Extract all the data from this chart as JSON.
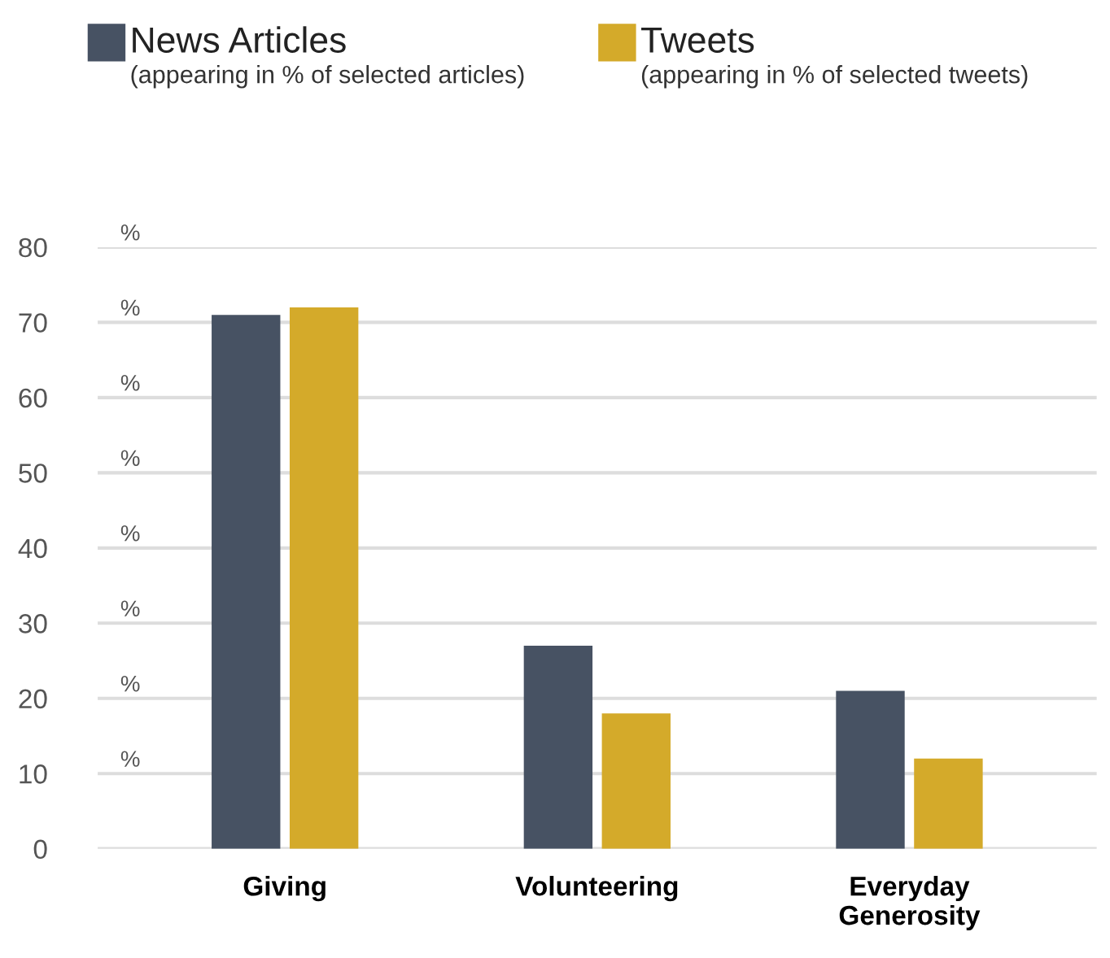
{
  "chart_data": {
    "type": "bar",
    "categories": [
      "Giving",
      "Volunteering",
      "Everyday\nGenerosity"
    ],
    "series": [
      {
        "name": "News Articles\n(appearing in % of selected articles)",
        "color": "#475263",
        "values": [
          71,
          27,
          21
        ]
      },
      {
        "name": "Tweets\n(appearing in % of selected tweets)",
        "color": "#d4aa2a",
        "values": [
          72,
          18,
          12
        ]
      }
    ],
    "ylim": [
      0,
      80
    ],
    "yticks": [
      0,
      10,
      20,
      30,
      40,
      50,
      60,
      70,
      80
    ],
    "grid": "y",
    "legend": "top",
    "annotations": [
      "%",
      "%",
      "%",
      "%",
      "%",
      "%",
      "%",
      "%"
    ]
  }
}
